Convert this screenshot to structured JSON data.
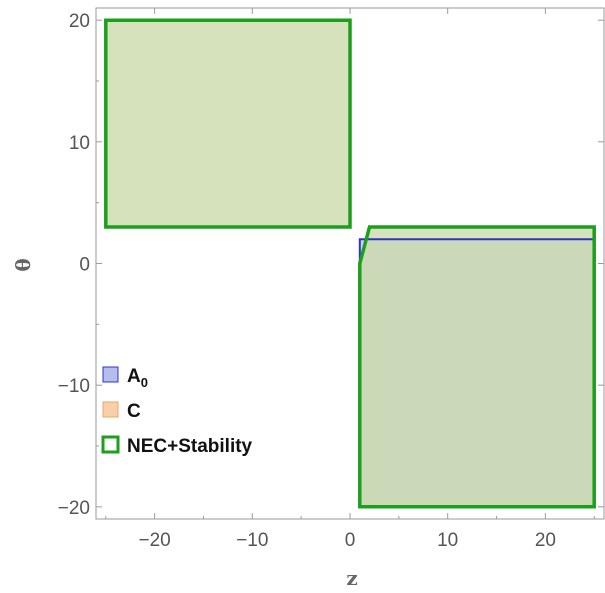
{
  "chart_data": {
    "type": "region_plot",
    "xlabel": "z",
    "ylabel": "θ",
    "xlim": [
      -26,
      26
    ],
    "ylim": [
      -21,
      21
    ],
    "x_ticks": [
      -20,
      -10,
      0,
      10,
      20
    ],
    "y_ticks": [
      -20,
      -10,
      0,
      10,
      20
    ],
    "x_tick_labels": [
      "−20",
      "−10",
      "0",
      "10",
      "20"
    ],
    "y_tick_labels": [
      "−20",
      "−10",
      "0",
      "10",
      "20"
    ],
    "grid": false,
    "legend_placement": "left",
    "series": [
      {
        "name": "A",
        "name_subscript": "0",
        "fill": "#aab0e6",
        "stroke": "#2a35c8",
        "regions": [
          [
            [
              1,
              0
            ],
            [
              1,
              2
            ],
            [
              25,
              2
            ],
            [
              25,
              -20
            ],
            [
              1,
              -20
            ]
          ]
        ]
      },
      {
        "name": "C",
        "fill": "#f8c79a",
        "stroke": "#e8a46a",
        "regions": [
          [
            [
              -25,
              3
            ],
            [
              0,
              3
            ],
            [
              0,
              20
            ],
            [
              -25,
              20
            ]
          ],
          [
            [
              1,
              0
            ],
            [
              2,
              3
            ],
            [
              25,
              3
            ],
            [
              25,
              -20
            ],
            [
              1,
              -20
            ]
          ]
        ]
      },
      {
        "name": "NEC+Stability",
        "fill": "#b6e4b0",
        "stroke": "#1c9f1c",
        "regions": [
          [
            [
              -25,
              3
            ],
            [
              0,
              3
            ],
            [
              0,
              20
            ],
            [
              -25,
              20
            ]
          ],
          [
            [
              1,
              0
            ],
            [
              2,
              3
            ],
            [
              25,
              3
            ],
            [
              25,
              -20
            ],
            [
              1,
              -20
            ]
          ]
        ]
      }
    ]
  }
}
